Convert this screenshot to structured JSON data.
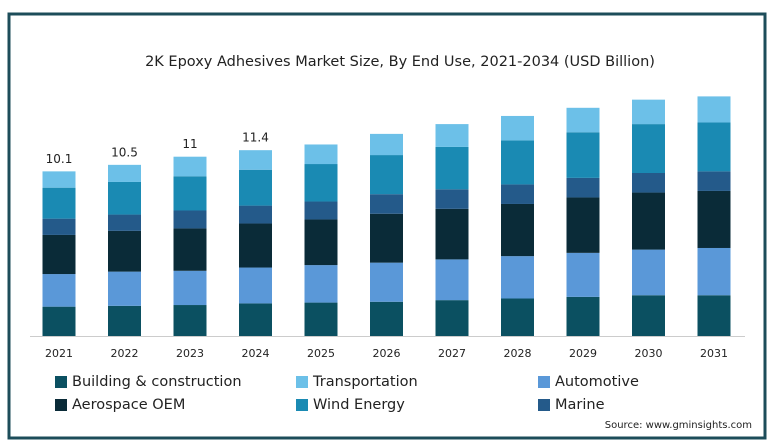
{
  "chart_data": {
    "type": "stacked_bar",
    "title": "2K Epoxy Adhesives Market Size, By End Use, 2021-2034 (USD Billion)",
    "categories": [
      "2021",
      "2022",
      "2023",
      "2024",
      "2025",
      "2026",
      "2027",
      "2028",
      "2029",
      "2030",
      "2031"
    ],
    "series": [
      {
        "name": "Building & construction",
        "color": "#0b5061",
        "values": [
          1.8,
          1.85,
          1.9,
          2.0,
          2.05,
          2.1,
          2.2,
          2.3,
          2.4,
          2.5,
          2.5
        ]
      },
      {
        "name": "Transportation",
        "color": "#6cc0e8",
        "values": [
          1.0,
          1.05,
          1.2,
          1.2,
          1.2,
          1.3,
          1.4,
          1.5,
          1.5,
          1.5,
          1.6
        ]
      },
      {
        "name": "Automotive",
        "color": "#5a98d8",
        "values": [
          2.0,
          2.1,
          2.1,
          2.2,
          2.3,
          2.4,
          2.5,
          2.6,
          2.7,
          2.8,
          2.9
        ]
      },
      {
        "name": "Aerospace OEM",
        "color": "#0a2b38",
        "values": [
          2.4,
          2.5,
          2.6,
          2.7,
          2.8,
          3.0,
          3.1,
          3.2,
          3.4,
          3.5,
          3.5
        ]
      },
      {
        "name": "Wind Energy",
        "color": "#1a8ab3",
        "values": [
          1.9,
          2.0,
          2.1,
          2.2,
          2.3,
          2.4,
          2.6,
          2.7,
          2.8,
          3.0,
          3.0
        ]
      },
      {
        "name": "Marine",
        "color": "#245a8a",
        "values": [
          1.0,
          1.0,
          1.1,
          1.1,
          1.1,
          1.2,
          1.2,
          1.2,
          1.2,
          1.2,
          1.2
        ]
      }
    ],
    "totals": [
      10.1,
      10.5,
      11,
      11.4,
      null,
      null,
      null,
      null,
      null,
      null,
      null
    ],
    "source": "Source: www.gminsights.com"
  }
}
